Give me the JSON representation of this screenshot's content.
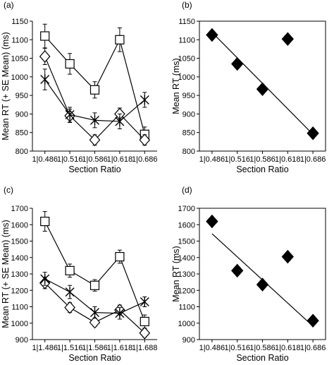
{
  "chart_data": [
    {
      "panel_label": "(a)",
      "type": "line",
      "ylabel": "Mean RT (+ SE Mean) (ms)",
      "xlabel": "Section Ratio",
      "categories": [
        "1|0.486",
        "1|0.516",
        "1|0.586",
        "1|0.618",
        "1|0.686"
      ],
      "ylim": [
        800,
        1150
      ],
      "yticks": [
        800,
        850,
        900,
        950,
        1000,
        1050,
        1100,
        1150
      ],
      "series": [
        {
          "marker": "square",
          "values": [
            1110,
            1035,
            965,
            1100,
            845
          ],
          "errors": [
            32,
            28,
            22,
            32,
            20
          ]
        },
        {
          "marker": "diamond",
          "values": [
            1055,
            895,
            830,
            900,
            830
          ],
          "errors": [
            22,
            18,
            14,
            16,
            14
          ]
        },
        {
          "marker": "asterisk",
          "values": [
            993,
            898,
            883,
            880,
            938
          ],
          "errors": [
            28,
            20,
            20,
            20,
            20
          ]
        }
      ]
    },
    {
      "panel_label": "(b)",
      "type": "scatter",
      "ylabel": "Mean RT (ms)",
      "xlabel": "Section Ratio",
      "categories": [
        "1|0.486",
        "1|0.516",
        "1|0.586",
        "1|0.618",
        "1|0.686"
      ],
      "ylim": [
        800,
        1150
      ],
      "yticks": [
        800,
        850,
        900,
        950,
        1000,
        1050,
        1100,
        1150
      ],
      "values": [
        1113,
        1035,
        967,
        1102,
        848
      ],
      "trendline": [
        1120,
        1057,
        984,
        950,
        845
      ]
    },
    {
      "panel_label": "(c)",
      "type": "line",
      "ylabel": "Mean RT (+ SE Mean) (ms)",
      "xlabel": "Section Ratio",
      "categories": [
        "1|1.486",
        "1|1.516",
        "1|1.586",
        "1|1.618",
        "1|1.688"
      ],
      "ylim": [
        900,
        1700
      ],
      "yticks": [
        900,
        1000,
        1100,
        1200,
        1300,
        1400,
        1500,
        1600,
        1700
      ],
      "series": [
        {
          "marker": "square",
          "values": [
            1620,
            1320,
            1230,
            1405,
            1010
          ],
          "errors": [
            60,
            40,
            35,
            40,
            40
          ]
        },
        {
          "marker": "diamond",
          "values": [
            1245,
            1095,
            1005,
            1080,
            940
          ],
          "errors": [
            35,
            30,
            25,
            30,
            25
          ]
        },
        {
          "marker": "asterisk",
          "values": [
            1270,
            1190,
            1065,
            1060,
            1130
          ],
          "errors": [
            40,
            40,
            35,
            35,
            30
          ]
        }
      ]
    },
    {
      "panel_label": "(d)",
      "type": "scatter",
      "ylabel": "Mean RT (ms)",
      "xlabel": "Section Ratio",
      "categories": [
        "1|0.486",
        "1|0.516",
        "1|0.586",
        "1|0.618",
        "1|0.686"
      ],
      "ylim": [
        900,
        1700
      ],
      "yticks": [
        900,
        1000,
        1100,
        1200,
        1300,
        1400,
        1500,
        1600,
        1700
      ],
      "values": [
        1620,
        1320,
        1235,
        1405,
        1015
      ],
      "trendline": [
        1545,
        1418,
        1238,
        1158,
        982
      ]
    }
  ]
}
